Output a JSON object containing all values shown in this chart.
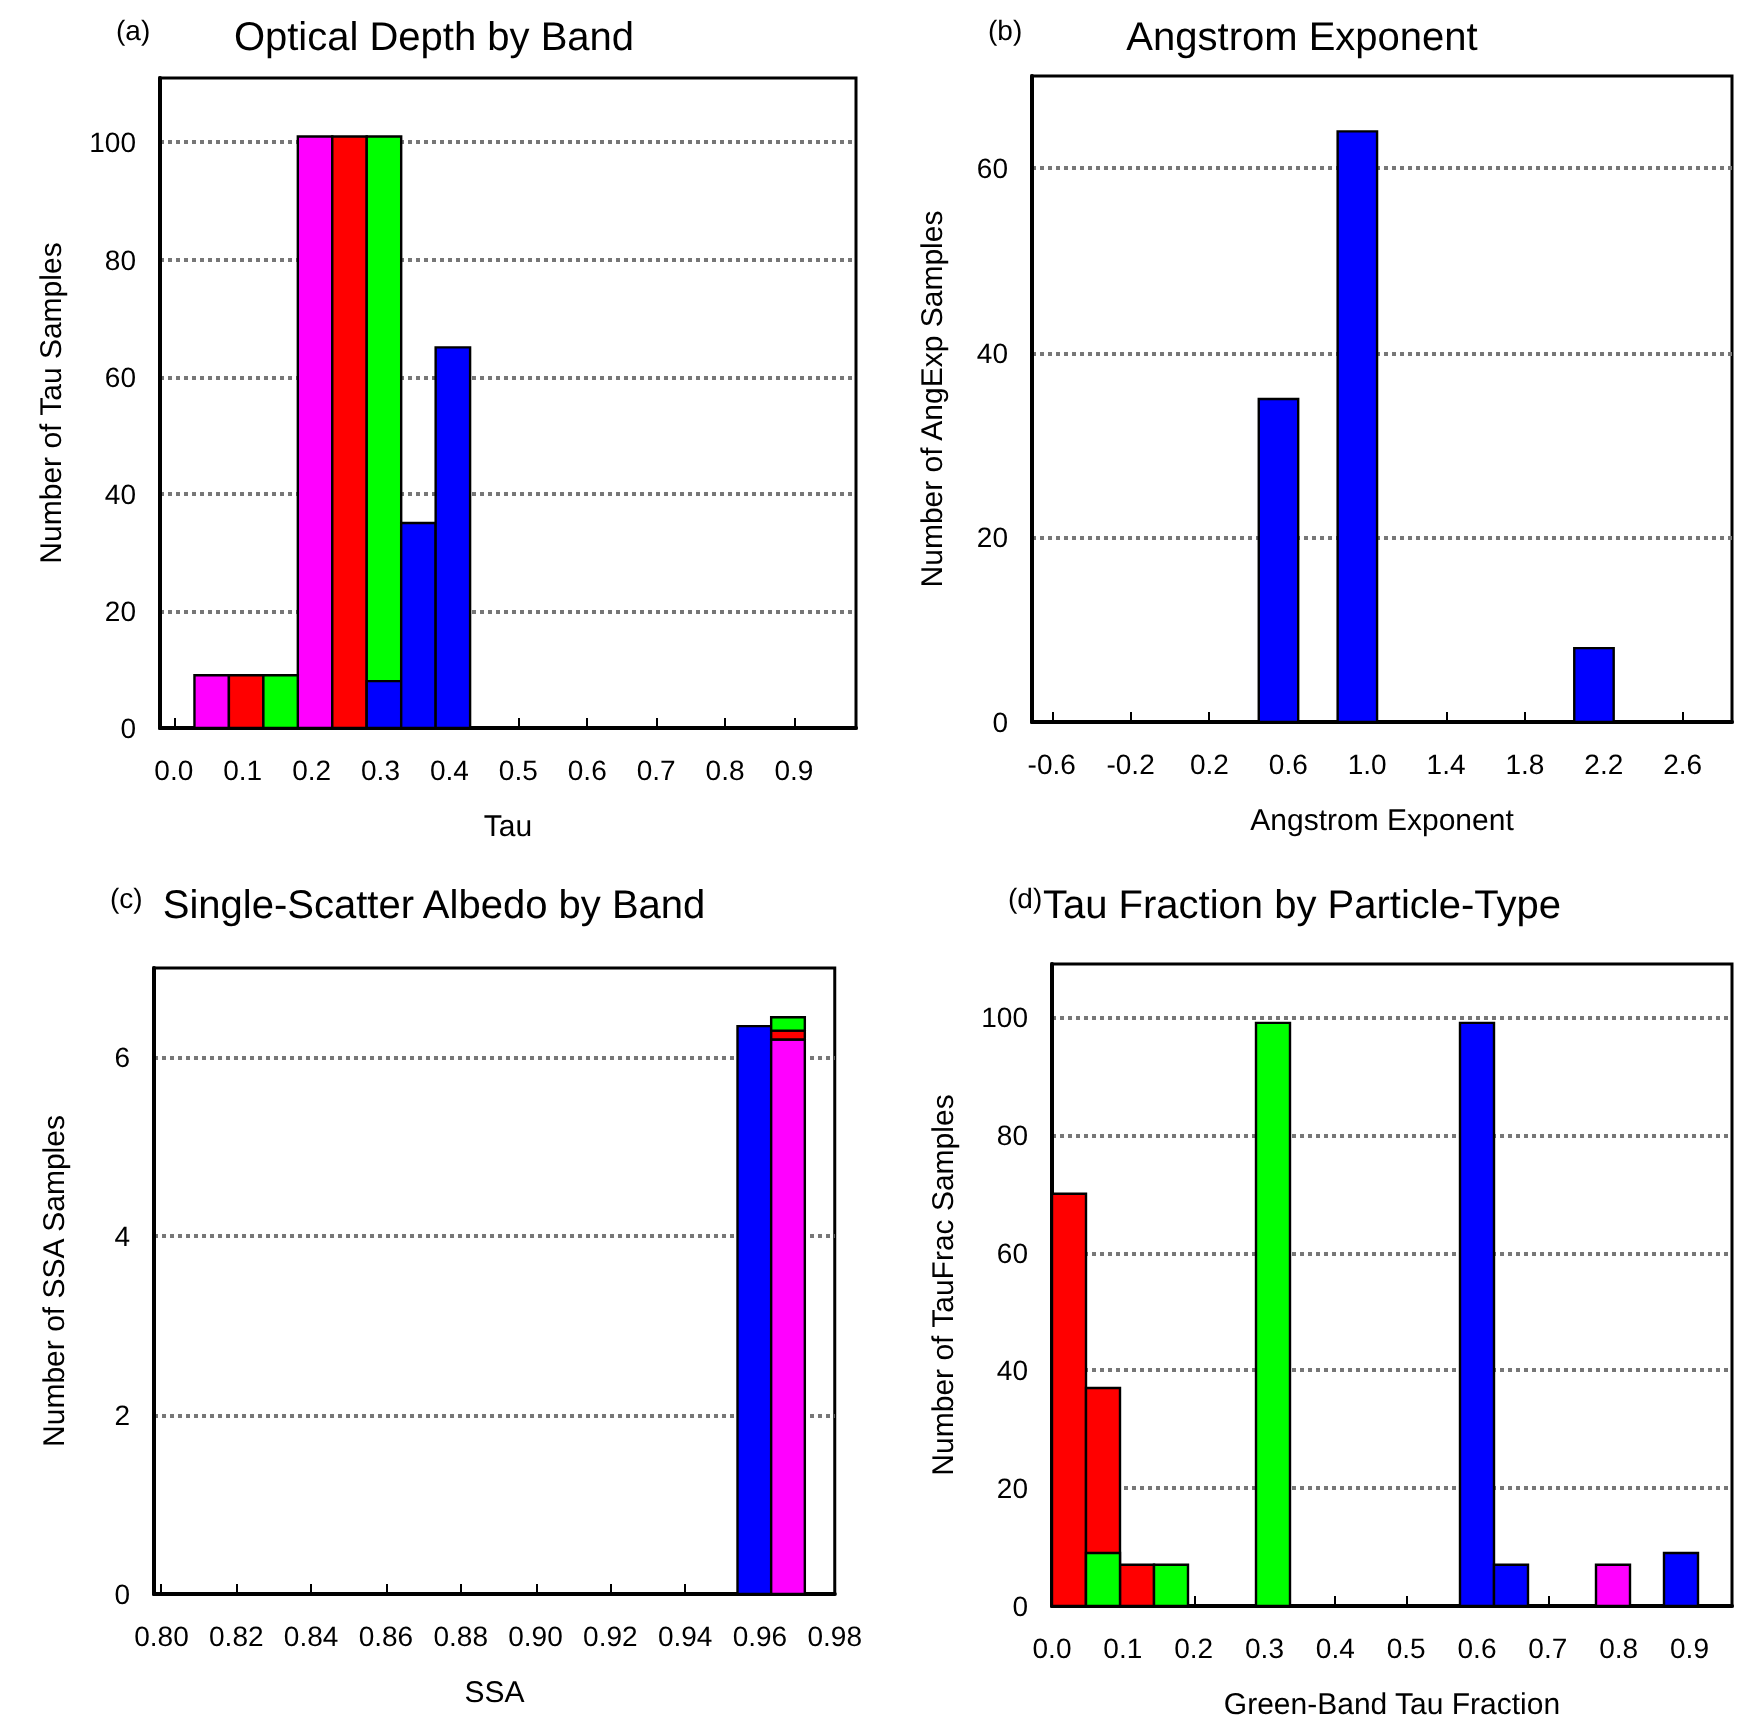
{
  "chart_data": [
    {
      "type": "histogram",
      "title": "Optical Depth by Band",
      "annotations": [
        "(a)"
      ],
      "xlabel": "Tau",
      "ylabel": "Number of Tau Samples",
      "bins": [
        0.03,
        0.08,
        0.13,
        0.18,
        0.23,
        0.28,
        0.33,
        0.38,
        0.43
      ],
      "grid": "y",
      "xlim": [
        -0.02,
        0.99
      ],
      "ylim": [
        0,
        111
      ],
      "xticks": [
        {
          "value": 0,
          "label": "0.0"
        },
        0.1,
        0.2,
        0.3,
        0.4,
        0.5,
        0.6,
        0.7,
        0.8,
        0.9
      ],
      "yticks": [
        0,
        20,
        40,
        60,
        80,
        100
      ],
      "series": [
        {
          "color": "#ff00ff",
          "values": [
            9,
            null,
            null,
            101,
            null,
            null,
            null,
            null
          ]
        },
        {
          "color": "#ff0000",
          "values": [
            null,
            9,
            null,
            null,
            101,
            null,
            null,
            null
          ]
        },
        {
          "color": "#00ff00",
          "values": [
            null,
            null,
            9,
            null,
            null,
            101,
            null,
            null
          ]
        },
        {
          "color": "#0000ff",
          "values": [
            null,
            null,
            null,
            null,
            null,
            8,
            35,
            65
          ]
        }
      ]
    },
    {
      "type": "histogram",
      "title": "Angstrom Exponent",
      "annotations": [
        "(b)"
      ],
      "xlabel": "Angstrom Exponent",
      "ylabel": "Number of AngExp Samples",
      "bins": [
        0.45,
        0.65,
        0.85,
        1.05,
        1.25,
        1.45,
        1.65,
        1.85,
        2.05,
        2.25
      ],
      "grid": "y",
      "xlim": [
        -0.7,
        2.85
      ],
      "ylim": [
        0,
        70
      ],
      "xticks": [
        -0.6,
        -0.2,
        0.2,
        0.6,
        {
          "value": 1,
          "label": "1.0"
        },
        1.4,
        1.8,
        2.2,
        2.6
      ],
      "yticks": [
        0,
        20,
        40,
        60
      ],
      "series": [
        {
          "color": "#0000ff",
          "values": [
            35,
            null,
            64,
            null,
            null,
            null,
            null,
            null,
            8
          ]
        }
      ]
    },
    {
      "type": "bar",
      "title": "Single-Scatter Albedo by Band",
      "annotations": [
        "(c)"
      ],
      "xlabel": "SSA",
      "ylabel": "Number of SSA Samples",
      "x": [
        0.9585,
        0.9675
      ],
      "stacked": true,
      "grid": "y",
      "xlim": [
        0.798,
        0.98
      ],
      "ylim": [
        0,
        7
      ],
      "xticks": [
        {
          "value": 0.8,
          "label": "0.80"
        },
        0.82,
        0.84,
        0.86,
        0.88,
        {
          "value": 0.9,
          "label": "0.90"
        },
        0.92,
        0.94,
        0.96,
        0.98
      ],
      "yticks": [
        0,
        2,
        4,
        6
      ],
      "series": [
        {
          "color": "#0000ff",
          "values": [
            6.35,
            null
          ]
        },
        {
          "color": "#ff00ff",
          "values": [
            null,
            6.2
          ]
        },
        {
          "color": "#ff0000",
          "values": [
            null,
            0.1
          ]
        },
        {
          "color": "#00ff00",
          "values": [
            null,
            0.15
          ]
        }
      ]
    },
    {
      "type": "histogram",
      "title": "Tau Fraction by Particle-Type",
      "annotations": [
        "(d)"
      ],
      "xlabel": "Green-Band Tau Fraction",
      "ylabel": "Number of TauFrac Samples",
      "bins": [
        0,
        0.048,
        0.096,
        0.144,
        0.192,
        0.24,
        0.288,
        0.336,
        0.384,
        0.432,
        0.48,
        0.528,
        0.576,
        0.624,
        0.672,
        0.72,
        0.768,
        0.816,
        0.864,
        0.912
      ],
      "grid": "y",
      "xlim": [
        0,
        0.96
      ],
      "ylim": [
        0,
        109
      ],
      "xticks": [
        {
          "value": 0,
          "label": "0.0"
        },
        0.1,
        0.2,
        0.3,
        0.4,
        0.5,
        0.6,
        0.7,
        0.8,
        0.9
      ],
      "yticks": [
        0,
        20,
        40,
        60,
        80,
        100
      ],
      "series": [
        {
          "color": "#ff0000",
          "values": [
            70,
            37,
            7,
            null,
            null,
            null,
            null,
            null,
            null,
            null,
            null,
            null,
            null,
            null,
            null,
            null,
            null,
            null,
            null
          ]
        },
        {
          "color": "#00ff00",
          "values": [
            null,
            9,
            null,
            7,
            null,
            null,
            99,
            null,
            null,
            null,
            null,
            null,
            null,
            null,
            null,
            null,
            null,
            null,
            null
          ]
        },
        {
          "color": "#0000ff",
          "values": [
            null,
            null,
            null,
            null,
            null,
            null,
            null,
            null,
            null,
            null,
            null,
            null,
            99,
            7,
            null,
            null,
            null,
            null,
            9
          ]
        },
        {
          "color": "#ff00ff",
          "values": [
            null,
            null,
            null,
            null,
            null,
            null,
            null,
            null,
            null,
            null,
            null,
            null,
            null,
            null,
            null,
            null,
            7,
            null,
            null
          ]
        }
      ]
    }
  ]
}
